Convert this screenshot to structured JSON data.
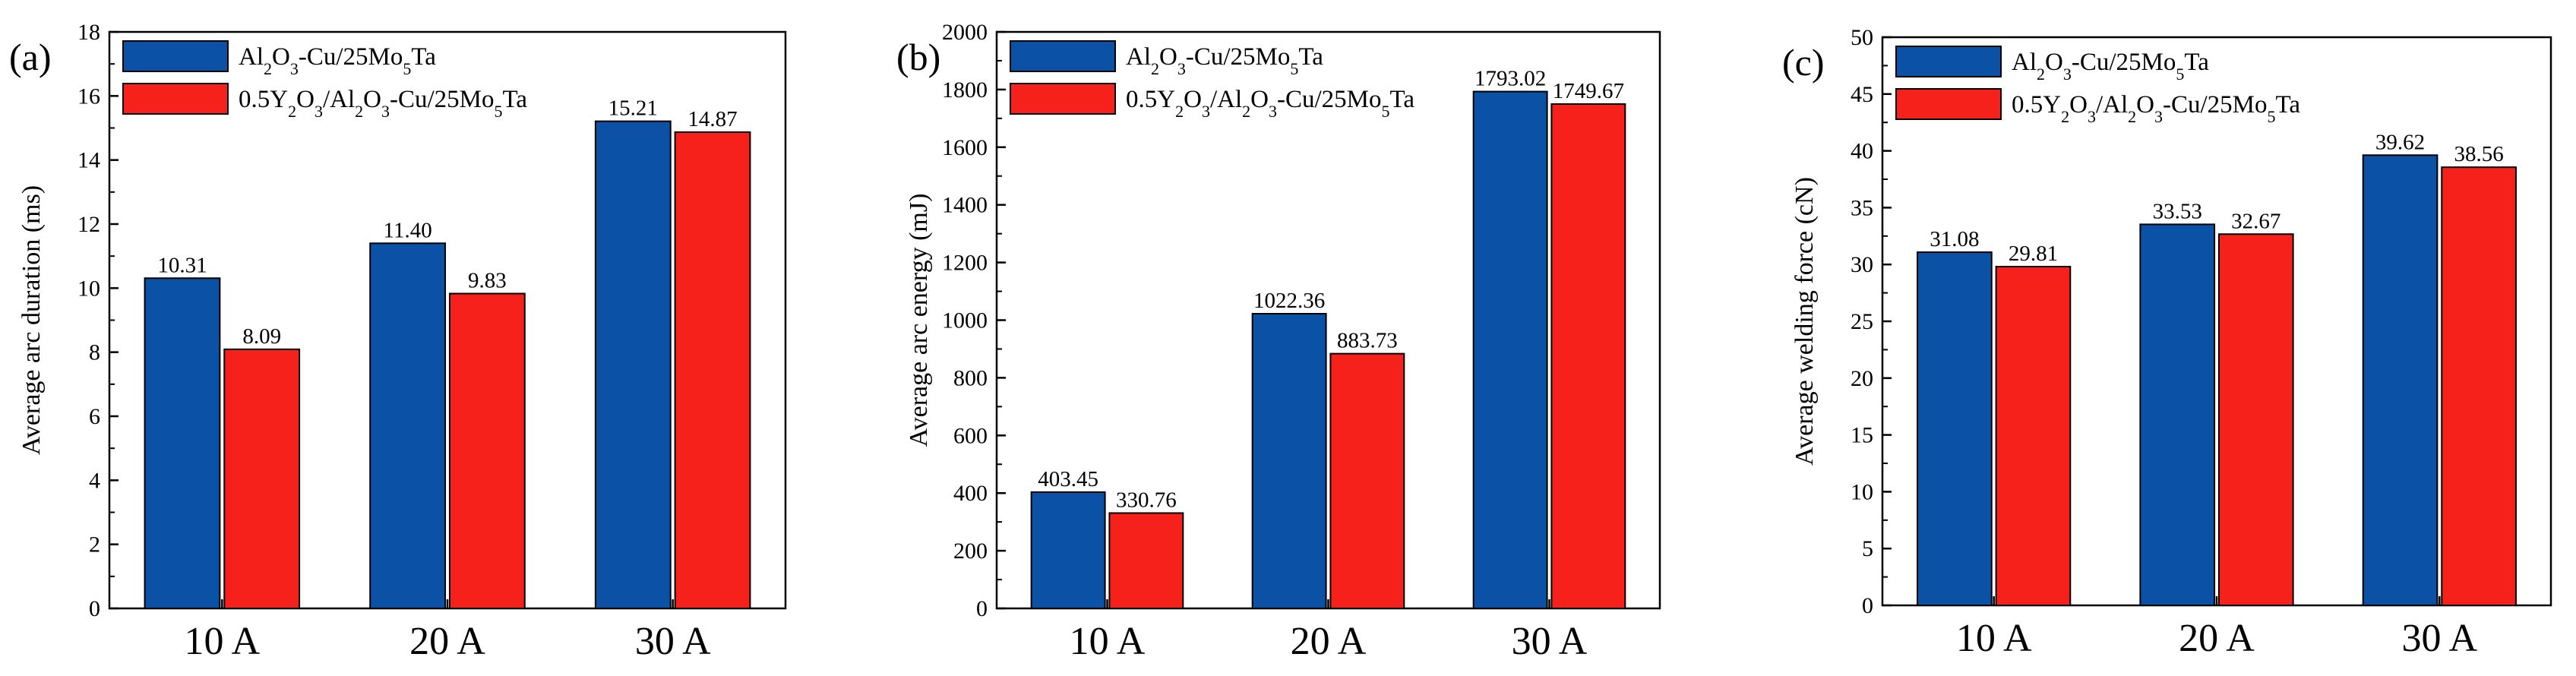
{
  "colors": {
    "series_0": "#0b51a6",
    "series_1": "#f6211b"
  },
  "chart_data": [
    {
      "type": "bar",
      "panel": "(a)",
      "categories": [
        "10 A",
        "20 A",
        "30 A"
      ],
      "ylabel": "Average arc duration (ms)",
      "ylim": [
        0,
        18
      ],
      "yticks": [
        "0",
        "2",
        "4",
        "6",
        "8",
        "10",
        "12",
        "14",
        "16",
        "18"
      ],
      "legend": [
        "Al2O3-Cu/25Mo5Ta",
        "0.5Y2O3/Al2O3-Cu/25Mo5Ta"
      ],
      "series": [
        {
          "name": "Al2O3-Cu/25Mo5Ta",
          "values": [
            10.31,
            11.4,
            15.21
          ],
          "labels": [
            "10.31",
            "11.40",
            "15.21"
          ]
        },
        {
          "name": "0.5Y2O3/Al2O3-Cu/25Mo5Ta",
          "values": [
            8.09,
            9.83,
            14.87
          ],
          "labels": [
            "8.09",
            "9.83",
            "14.87"
          ]
        }
      ]
    },
    {
      "type": "bar",
      "panel": "(b)",
      "categories": [
        "10 A",
        "20 A",
        "30 A"
      ],
      "ylabel": "Average arc energy (mJ)",
      "ylim": [
        0,
        2000
      ],
      "yticks": [
        "0",
        "200",
        "400",
        "600",
        "800",
        "1000",
        "1200",
        "1400",
        "1600",
        "1800",
        "2000"
      ],
      "legend": [
        "Al2O3-Cu/25Mo5Ta",
        "0.5Y2O3/Al2O3-Cu/25Mo5Ta"
      ],
      "series": [
        {
          "name": "Al2O3-Cu/25Mo5Ta",
          "values": [
            403.45,
            1022.36,
            1793.02
          ],
          "labels": [
            "403.45",
            "1022.36",
            "1793.02"
          ]
        },
        {
          "name": "0.5Y2O3/Al2O3-Cu/25Mo5Ta",
          "values": [
            330.76,
            883.73,
            1749.67
          ],
          "labels": [
            "330.76",
            "883.73",
            "1749.67"
          ]
        }
      ]
    },
    {
      "type": "bar",
      "panel": "(c)",
      "categories": [
        "10 A",
        "20 A",
        "30 A"
      ],
      "ylabel": "Average welding force (cN)",
      "ylim": [
        0,
        50
      ],
      "yticks": [
        "0",
        "5",
        "10",
        "15",
        "20",
        "25",
        "30",
        "35",
        "40",
        "45",
        "50"
      ],
      "legend": [
        "Al2O3-Cu/25Mo5Ta",
        "0.5Y2O3/Al2O3-Cu/25Mo5Ta"
      ],
      "series": [
        {
          "name": "Al2O3-Cu/25Mo5Ta",
          "values": [
            31.08,
            33.53,
            39.62
          ],
          "labels": [
            "31.08",
            "33.53",
            "39.62"
          ]
        },
        {
          "name": "0.5Y2O3/Al2O3-Cu/25Mo5Ta",
          "values": [
            29.81,
            32.67,
            38.56
          ],
          "labels": [
            "29.81",
            "32.67",
            "38.56"
          ]
        }
      ]
    }
  ]
}
